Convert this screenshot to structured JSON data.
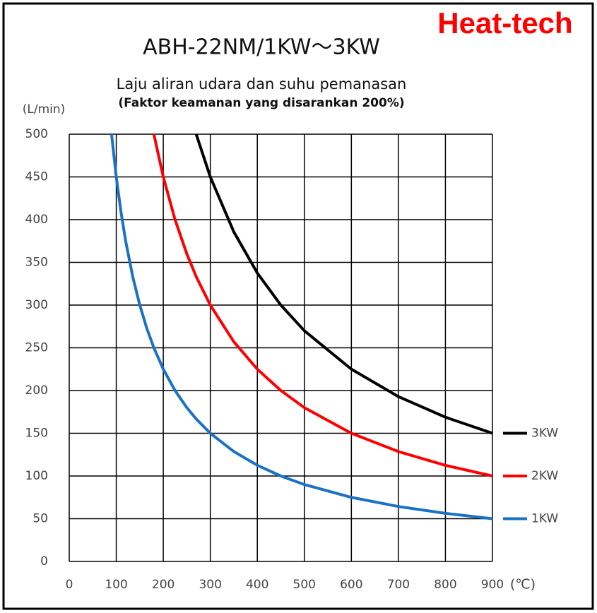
{
  "chart_data": {
    "type": "line",
    "brand": "Heat-tech",
    "title": "ABH-22NM/1KW～3KW",
    "subtitle": "Laju aliran udara dan suhu pemanasan",
    "note": "(Faktor keamanan yang disarankan 200%)",
    "y_label": "(L/min)",
    "x_label": "(℃)",
    "x": [
      90,
      100,
      110,
      120,
      135,
      150,
      165,
      180,
      200,
      225,
      250,
      270,
      300,
      350,
      400,
      450,
      500,
      600,
      700,
      800,
      900
    ],
    "series": [
      {
        "name": "3KW",
        "color": "#000000",
        "values": [
          null,
          null,
          null,
          null,
          null,
          null,
          null,
          null,
          null,
          null,
          null,
          500,
          450,
          385.7,
          337.5,
          300,
          270,
          225,
          192.9,
          168.8,
          150
        ]
      },
      {
        "name": "2KW",
        "color": "#ff0000",
        "values": [
          null,
          null,
          null,
          null,
          null,
          null,
          null,
          500,
          450,
          400,
          360,
          333.3,
          300,
          257.1,
          225,
          200,
          180,
          150,
          128.6,
          112.5,
          100
        ]
      },
      {
        "name": "1KW",
        "color": "#1a72c4",
        "values": [
          500,
          450,
          409.1,
          375,
          333.3,
          300,
          272.7,
          250,
          225,
          200,
          180,
          166.7,
          150,
          128.6,
          112.5,
          100,
          90,
          75,
          64.3,
          56.3,
          50
        ]
      }
    ],
    "xlim": [
      0,
      900
    ],
    "ylim": [
      0,
      500
    ],
    "xticks": [
      0,
      100,
      200,
      300,
      400,
      500,
      600,
      700,
      800,
      900
    ],
    "yticks": [
      0,
      50,
      100,
      150,
      200,
      250,
      300,
      350,
      400,
      450,
      500
    ],
    "grid": true
  }
}
